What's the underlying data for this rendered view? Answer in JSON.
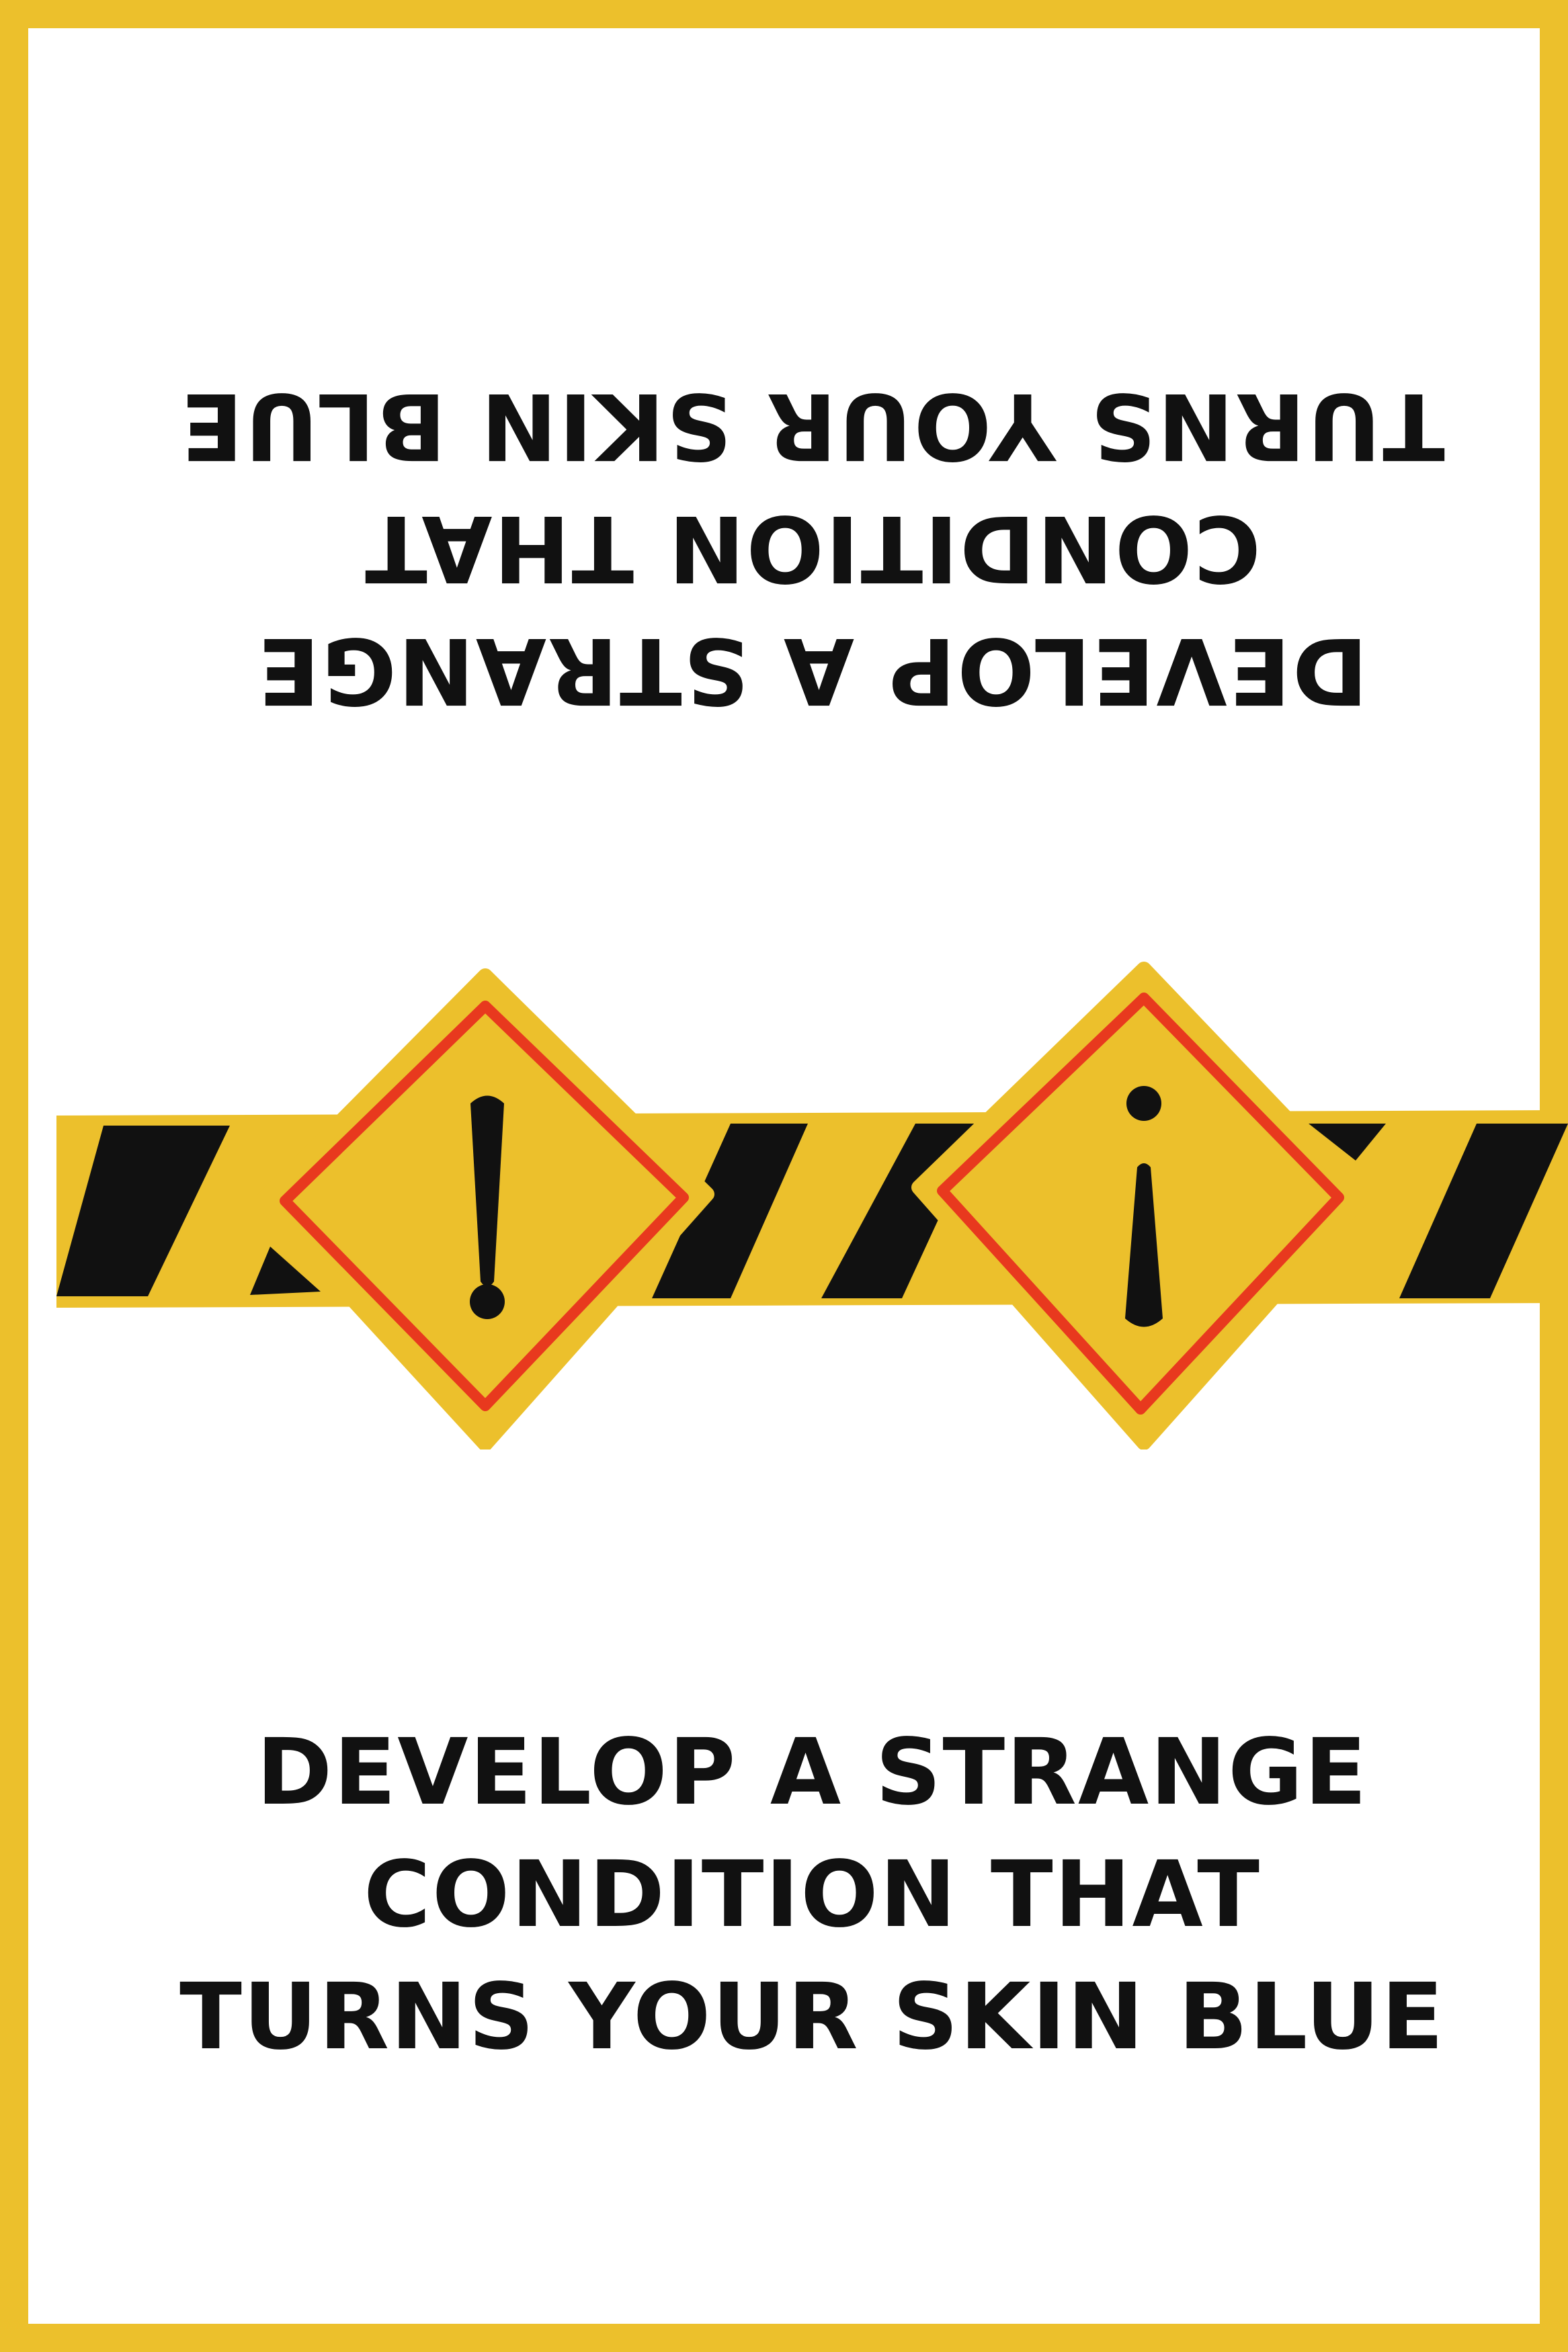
{
  "card": {
    "border_color": "#ECC02C",
    "background_color": "#FFFFFF"
  },
  "prompt": {
    "lines": [
      "DEVELOP A STRANGE",
      "CONDITION THAT",
      "TURNS YOUR SKIN BLUE"
    ]
  },
  "prompt_inverted": {
    "lines": [
      "DEVELOP A STRANGE",
      "CONDITION THAT",
      "TURNS YOUR SKIN BLUE"
    ]
  },
  "graphic": {
    "tape_color": "#ECC02C",
    "stripe_color": "#111111",
    "sign_fill": "#ECC02C",
    "sign_border_color": "#E8391E",
    "signs": [
      {
        "icon": "exclamation-icon",
        "glyph": "!"
      },
      {
        "icon": "inverted-exclamation-icon",
        "glyph": "¡"
      }
    ]
  }
}
